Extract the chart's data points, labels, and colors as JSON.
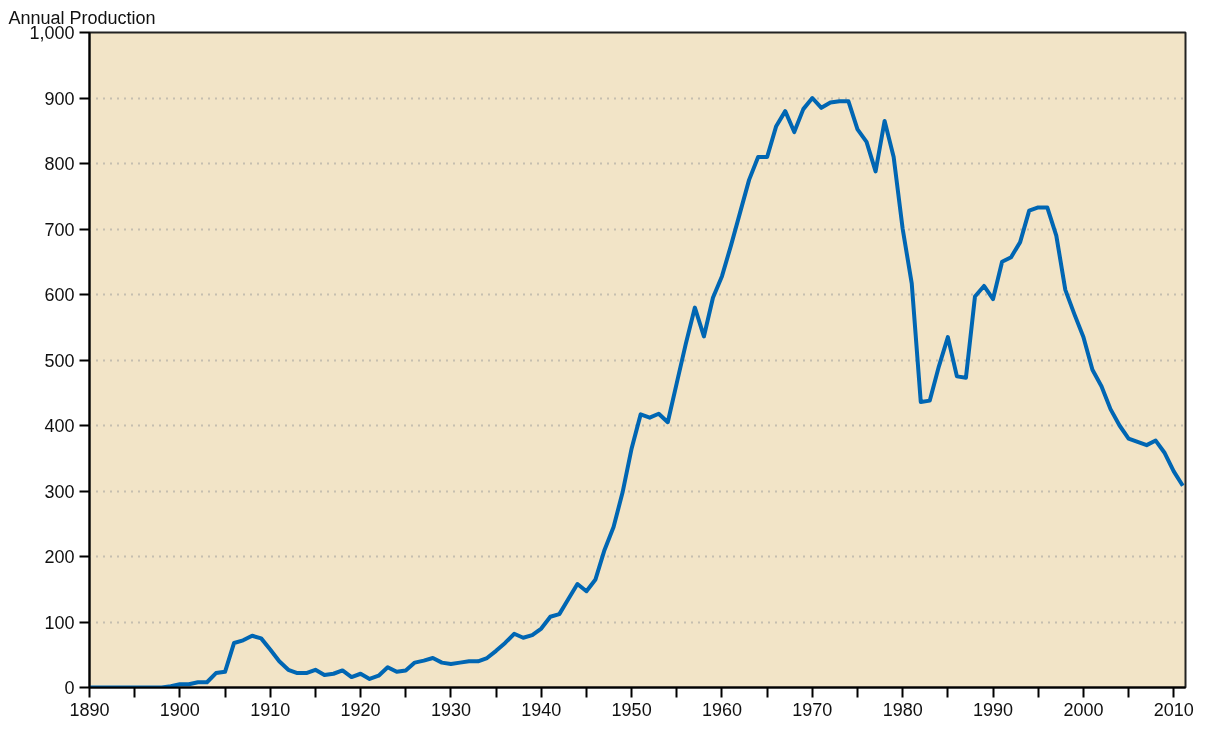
{
  "chart_data": {
    "type": "line",
    "ylabel": "Annual Production",
    "x": [
      1890,
      1891,
      1892,
      1893,
      1894,
      1895,
      1896,
      1897,
      1898,
      1899,
      1900,
      1901,
      1902,
      1903,
      1904,
      1905,
      1906,
      1907,
      1908,
      1909,
      1910,
      1911,
      1912,
      1913,
      1914,
      1915,
      1916,
      1917,
      1918,
      1919,
      1920,
      1921,
      1922,
      1923,
      1924,
      1925,
      1926,
      1927,
      1928,
      1929,
      1930,
      1931,
      1932,
      1933,
      1934,
      1935,
      1936,
      1937,
      1938,
      1939,
      1940,
      1941,
      1942,
      1943,
      1944,
      1945,
      1946,
      1947,
      1948,
      1949,
      1950,
      1951,
      1952,
      1953,
      1954,
      1955,
      1956,
      1957,
      1958,
      1959,
      1960,
      1961,
      1962,
      1963,
      1964,
      1965,
      1966,
      1967,
      1968,
      1969,
      1970,
      1971,
      1972,
      1973,
      1974,
      1975,
      1976,
      1977,
      1978,
      1979,
      1980,
      1981,
      1982,
      1983,
      1984,
      1985,
      1986,
      1987,
      1988,
      1989,
      1990,
      1991,
      1992,
      1993,
      1994,
      1995,
      1996,
      1997,
      1998,
      1999,
      2000,
      2001,
      2002,
      2003,
      2004,
      2005,
      2006,
      2007,
      2008,
      2009,
      2010,
      2011
    ],
    "series": [
      {
        "color": "#0066b3",
        "values": [
          0,
          0,
          0,
          0,
          0,
          0,
          0,
          0,
          0,
          2,
          5,
          5,
          8,
          8,
          22,
          24,
          68,
          72,
          79,
          75,
          58,
          40,
          27,
          22,
          22,
          27,
          19,
          21,
          26,
          16,
          21,
          13,
          18,
          31,
          24,
          26,
          38,
          41,
          45,
          38,
          36,
          38,
          40,
          40,
          45,
          56,
          68,
          82,
          76,
          80,
          90,
          108,
          112,
          135,
          158,
          147,
          165,
          210,
          245,
          298,
          365,
          417,
          412,
          418,
          405,
          465,
          525,
          580,
          536,
          595,
          628,
          675,
          725,
          775,
          810,
          810,
          857,
          880,
          848,
          883,
          900,
          885,
          893,
          895,
          895,
          852,
          833,
          788,
          865,
          810,
          700,
          617,
          436,
          438,
          490,
          535,
          475,
          473,
          597,
          613,
          593,
          650,
          657,
          680,
          728,
          733,
          733,
          690,
          607,
          570,
          535,
          485,
          460,
          425,
          400,
          380,
          375,
          370,
          377,
          358,
          330,
          308
        ]
      }
    ],
    "xlim": [
      1890,
      2011.3
    ],
    "xticks": [
      1890,
      {
        "value": 1895,
        "label": null
      },
      1900,
      {
        "value": 1905,
        "label": null
      },
      1910,
      {
        "value": 1915,
        "label": null
      },
      1920,
      {
        "value": 1925,
        "label": null
      },
      1930,
      {
        "value": 1935,
        "label": null
      },
      1940,
      {
        "value": 1945,
        "label": null
      },
      1950,
      {
        "value": 1955,
        "label": null
      },
      1960,
      {
        "value": 1965,
        "label": null
      },
      1970,
      {
        "value": 1975,
        "label": null
      },
      1980,
      {
        "value": 1985,
        "label": null
      },
      1990,
      {
        "value": 1995,
        "label": null
      },
      2000,
      {
        "value": 2005,
        "label": null
      },
      2010
    ],
    "ylim": [
      0,
      1000
    ],
    "yticks": [
      0,
      100,
      200,
      300,
      400,
      500,
      600,
      700,
      800,
      900,
      {
        "value": 1000,
        "label": "1,000"
      }
    ],
    "grid": "y",
    "marker": "none",
    "line_style": "solid"
  }
}
